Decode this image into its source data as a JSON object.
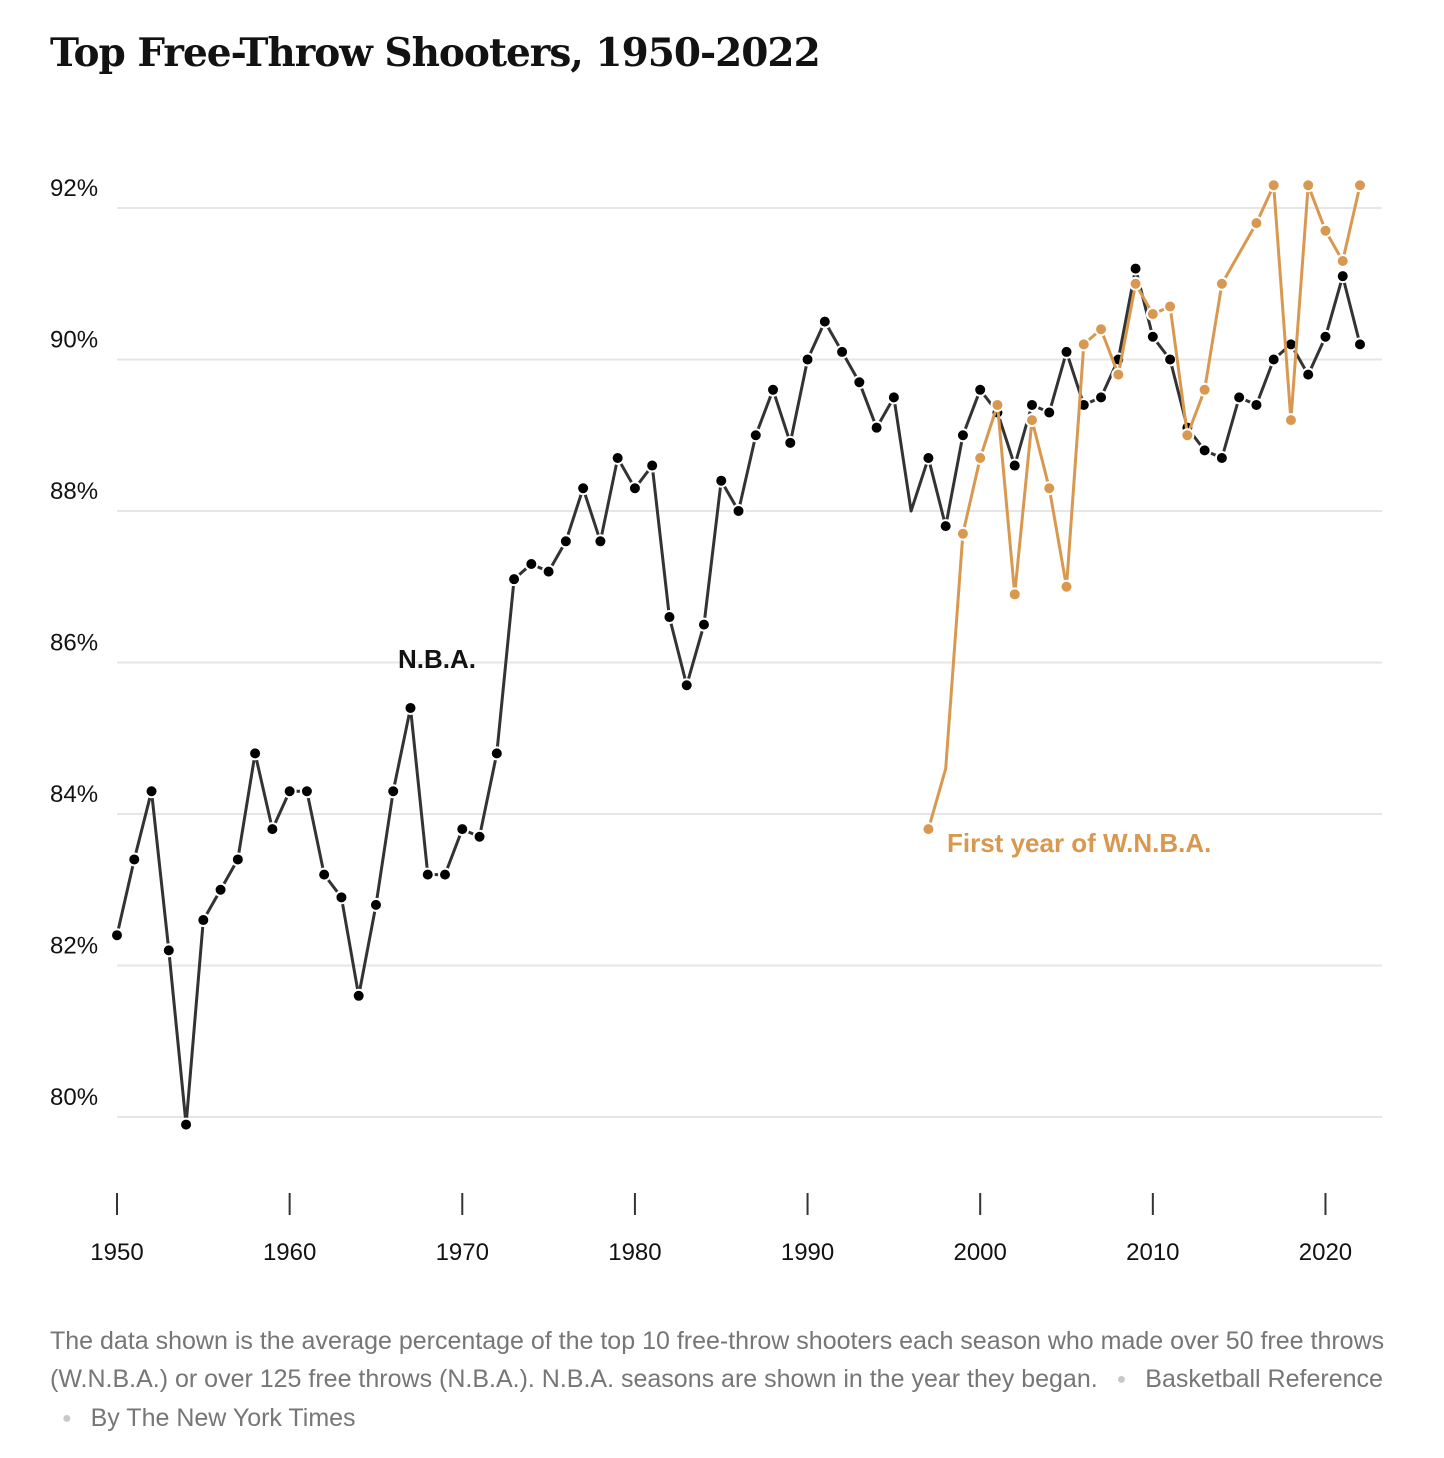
{
  "title": "Top Free-Throw Shooters, 1950-2022",
  "colors": {
    "nba": "#333333",
    "nba_dot": "#000000",
    "wnba": "#d9984f",
    "grid": "#e6e6e6",
    "text": "#121212",
    "note": "#767676"
  },
  "chart_data": {
    "type": "line",
    "title": "Top Free-Throw Shooters, 1950-2022",
    "xlabel": "",
    "ylabel": "",
    "xlim": [
      1950,
      2022
    ],
    "ylim": [
      79,
      93
    ],
    "y_ticks": [
      80,
      82,
      84,
      86,
      88,
      90,
      92
    ],
    "y_tick_labels": [
      "80%",
      "82%",
      "84%",
      "86%",
      "88%",
      "90%",
      "92%"
    ],
    "x_ticks": [
      1950,
      1960,
      1970,
      1980,
      1990,
      2000,
      2010,
      2020
    ],
    "x_tick_labels": [
      "1950",
      "1960",
      "1970",
      "1980",
      "1990",
      "2000",
      "2010",
      "2020"
    ],
    "grid": true,
    "series": [
      {
        "name": "N.B.A.",
        "x": [
          1950,
          1951,
          1952,
          1953,
          1954,
          1955,
          1956,
          1957,
          1958,
          1959,
          1960,
          1961,
          1962,
          1963,
          1964,
          1965,
          1966,
          1967,
          1968,
          1969,
          1970,
          1971,
          1972,
          1973,
          1974,
          1975,
          1976,
          1977,
          1978,
          1979,
          1980,
          1981,
          1982,
          1983,
          1984,
          1985,
          1986,
          1987,
          1988,
          1989,
          1990,
          1991,
          1992,
          1993,
          1994,
          1995,
          1996,
          1997,
          1998,
          1999,
          2000,
          2001,
          2002,
          2003,
          2004,
          2005,
          2006,
          2007,
          2008,
          2009,
          2010,
          2011,
          2012,
          2013,
          2014,
          2015,
          2016,
          2017,
          2018,
          2019,
          2020,
          2021,
          2022
        ],
        "values": [
          82.4,
          83.4,
          84.3,
          82.2,
          79.9,
          82.6,
          83.0,
          83.4,
          84.8,
          83.8,
          84.3,
          84.3,
          83.2,
          82.9,
          81.6,
          82.8,
          84.3,
          85.4,
          83.2,
          83.2,
          83.8,
          83.7,
          84.8,
          87.1,
          87.3,
          87.2,
          87.6,
          88.3,
          87.6,
          88.7,
          88.3,
          88.6,
          86.6,
          85.7,
          86.5,
          88.4,
          88.0,
          89.0,
          89.6,
          88.9,
          90.0,
          90.5,
          90.1,
          89.7,
          89.1,
          89.5,
          88.0,
          88.7,
          87.8,
          89.0,
          89.6,
          89.3,
          88.6,
          89.4,
          89.3,
          90.1,
          89.4,
          89.5,
          90.0,
          91.2,
          90.3,
          90.0,
          89.1,
          88.8,
          88.7,
          89.5,
          89.4,
          90.0,
          90.2,
          89.8,
          90.3,
          91.1,
          90.2
        ],
        "markers_missing_at": [
          1996
        ]
      },
      {
        "name": "W.N.B.A.",
        "x": [
          1997,
          1998,
          1999,
          2000,
          2001,
          2002,
          2003,
          2004,
          2005,
          2006,
          2007,
          2008,
          2009,
          2010,
          2011,
          2012,
          2013,
          2014,
          2015,
          2016,
          2017,
          2018,
          2019,
          2020,
          2021,
          2022
        ],
        "values": [
          83.8,
          84.6,
          87.7,
          88.7,
          89.4,
          86.9,
          89.2,
          88.3,
          87.0,
          90.2,
          90.4,
          89.8,
          91.0,
          90.6,
          90.7,
          89.0,
          89.6,
          91.0,
          91.4,
          91.8,
          92.3,
          89.2,
          92.3,
          91.7,
          91.3,
          92.3
        ],
        "markers_missing_at": [
          1998,
          2015
        ]
      }
    ],
    "annotations": [
      {
        "text": "N.B.A.",
        "series": "N.B.A."
      },
      {
        "text": "First year of W.N.B.A.",
        "series": "W.N.B.A."
      }
    ]
  },
  "note": {
    "text": "The data shown is the average percentage of the top 10 free-throw shooters each season who made over 50 free throws (W.N.B.A.) or over 125 free throws (N.B.A.). N.B.A. seasons are shown in the year they began.",
    "source": "Basketball Reference",
    "credit": "By The New York Times"
  }
}
